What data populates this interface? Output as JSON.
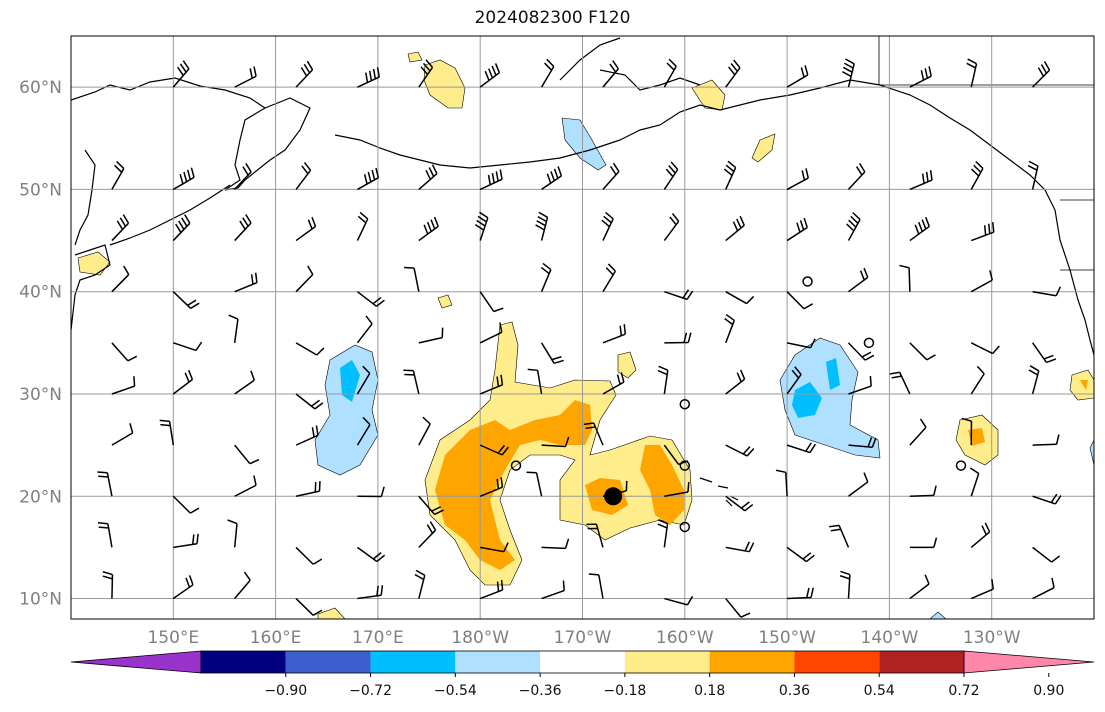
{
  "title": "2024082300 F120",
  "lat_labels": [
    {
      "lat": 60,
      "text": "60°N"
    },
    {
      "lat": 50,
      "text": "50°N"
    },
    {
      "lat": 40,
      "text": "40°N"
    },
    {
      "lat": 30,
      "text": "30°N"
    },
    {
      "lat": 20,
      "text": "20°N"
    },
    {
      "lat": 10,
      "text": "10°N"
    }
  ],
  "lon_labels": [
    {
      "lon": 150,
      "text": "150°E"
    },
    {
      "lon": 160,
      "text": "160°E"
    },
    {
      "lon": 170,
      "text": "170°E"
    },
    {
      "lon": 180,
      "text": "180°W"
    },
    {
      "lon": 190,
      "text": "170°W"
    },
    {
      "lon": 200,
      "text": "160°W"
    },
    {
      "lon": 210,
      "text": "150°W"
    },
    {
      "lon": 220,
      "text": "140°W"
    },
    {
      "lon": 230,
      "text": "130°W"
    }
  ],
  "extent": {
    "lon_min": 140,
    "lon_max": 240,
    "lat_min": 8,
    "lat_max": 65
  },
  "colorbar": {
    "colors": [
      "#9933cc",
      "#000080",
      "#3a5fcd",
      "#00bfff",
      "#b0e0ff",
      "#ffffff",
      "#ffec8b",
      "#ffa500",
      "#ff4500",
      "#b22222",
      "#ff88aa"
    ],
    "ticks": [
      "−0.90",
      "−0.72",
      "−0.54",
      "−0.36",
      "−0.18",
      "0.18",
      "0.36",
      "0.54",
      "0.72",
      "0.90"
    ]
  },
  "contour_colors": {
    "light_pos": "#ffec8b",
    "mid_pos": "#ffa500",
    "light_neg": "#b0e0ff",
    "mid_neg": "#00bfff"
  },
  "storm_center": {
    "lon": 193,
    "lat": 20
  }
}
